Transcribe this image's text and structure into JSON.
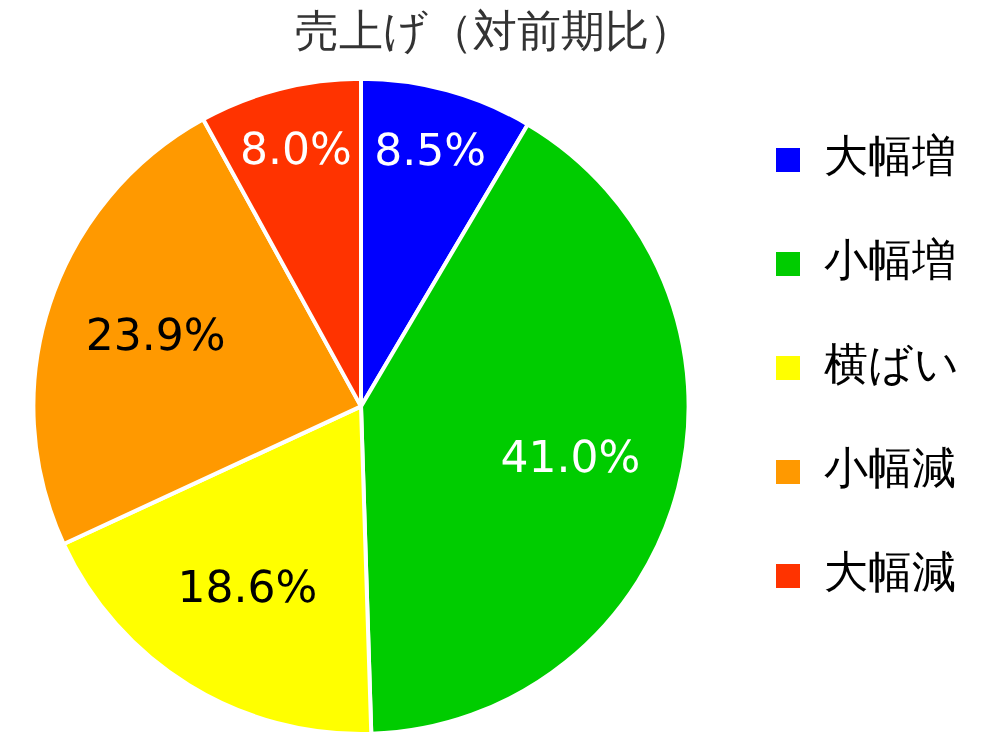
{
  "chart_data": {
    "type": "pie",
    "title": "売上げ（対前期比）",
    "categories": [
      "大幅増",
      "小幅増",
      "横ばい",
      "小幅減",
      "大幅減"
    ],
    "values": [
      8.5,
      41.0,
      18.6,
      23.9,
      8.0
    ],
    "value_labels": [
      "8.5%",
      "41.0%",
      "18.6%",
      "23.9%",
      "8.0%"
    ],
    "colors": [
      "#0000ff",
      "#00cc00",
      "#ffff00",
      "#ff9900",
      "#ff3300"
    ],
    "legend": "right"
  }
}
